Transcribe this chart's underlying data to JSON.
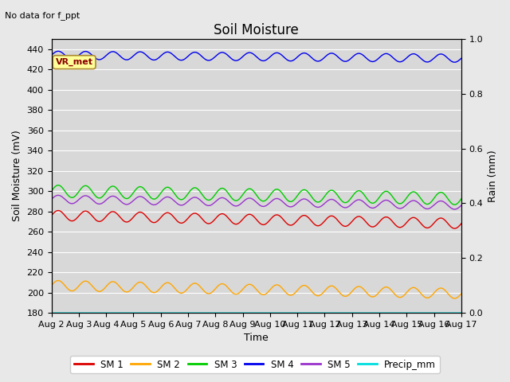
{
  "title": "Soil Moisture",
  "top_left_text": "No data for f_ppt",
  "ylabel_left": "Soil Moisture (mV)",
  "ylabel_right": "Rain (mm)",
  "xlabel": "Time",
  "ylim_left": [
    180,
    450
  ],
  "ylim_right": [
    0.0,
    1.0
  ],
  "yticks_left": [
    180,
    200,
    220,
    240,
    260,
    280,
    300,
    320,
    340,
    360,
    380,
    400,
    420,
    440
  ],
  "yticks_right": [
    0.0,
    0.2,
    0.4,
    0.6,
    0.8,
    1.0
  ],
  "x_start": 0,
  "x_end": 15,
  "n_points": 1500,
  "xtick_positions": [
    0,
    1,
    2,
    3,
    4,
    5,
    6,
    7,
    8,
    9,
    10,
    11,
    12,
    13,
    14,
    15
  ],
  "xtick_labels": [
    "Aug 2",
    "Aug 3",
    "Aug 4",
    "Aug 5",
    "Aug 6",
    "Aug 7",
    "Aug 8",
    "Aug 9",
    "Aug 10",
    "Aug 11",
    "Aug 12",
    "Aug 13",
    "Aug 14",
    "Aug 15",
    "Aug 16",
    "Aug 17"
  ],
  "series": {
    "SM1": {
      "color": "#dd0000",
      "base": 276,
      "amplitude": 5,
      "freq": 1.0,
      "trend": -0.53,
      "right_axis": false
    },
    "SM2": {
      "color": "#ffa500",
      "base": 207,
      "amplitude": 5,
      "freq": 1.0,
      "trend": -0.53,
      "right_axis": false
    },
    "SM3": {
      "color": "#00cc00",
      "base": 300,
      "amplitude": 6,
      "freq": 1.0,
      "trend": -0.5,
      "right_axis": false
    },
    "SM4": {
      "color": "#0000ee",
      "base": 434,
      "amplitude": 4,
      "freq": 1.0,
      "trend": -0.2,
      "right_axis": false
    },
    "SM5": {
      "color": "#9933cc",
      "base": 292,
      "amplitude": 4,
      "freq": 1.0,
      "trend": -0.4,
      "right_axis": false
    },
    "Precip_mm": {
      "color": "#00dddd",
      "base": 0.0,
      "amplitude": 0.0,
      "freq": 0,
      "trend": 0,
      "right_axis": true
    }
  },
  "legend_entries": [
    "SM 1",
    "SM 2",
    "SM 3",
    "SM 4",
    "SM 5",
    "Precip_mm"
  ],
  "legend_colors": [
    "#dd0000",
    "#ffa500",
    "#00cc00",
    "#0000ee",
    "#9933cc",
    "#00dddd"
  ],
  "vr_met_box_color": "#ffff99",
  "vr_met_text_color": "#880000",
  "background_color": "#e8e8e8",
  "plot_bg_color": "#d8d8d8",
  "grid_color": "#ffffff",
  "title_fontsize": 12,
  "label_fontsize": 9,
  "tick_fontsize": 8
}
